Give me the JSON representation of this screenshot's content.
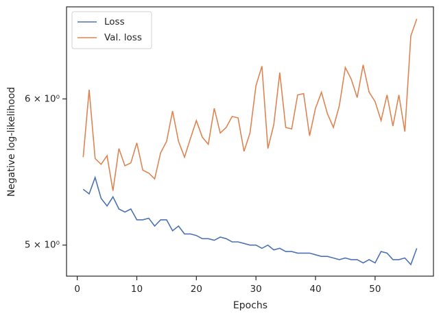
{
  "chart_data": {
    "type": "line",
    "xlabel": "Epochs",
    "ylabel": "Negative log-likelihood",
    "x": [
      1,
      2,
      3,
      4,
      5,
      6,
      7,
      8,
      9,
      10,
      11,
      12,
      13,
      14,
      15,
      16,
      17,
      18,
      19,
      20,
      21,
      22,
      23,
      24,
      25,
      26,
      27,
      28,
      29,
      30,
      31,
      32,
      33,
      34,
      35,
      36,
      37,
      38,
      39,
      40,
      41,
      42,
      43,
      44,
      45,
      46,
      47,
      48,
      49,
      50,
      51,
      52,
      53,
      54,
      55,
      56,
      57
    ],
    "series": [
      {
        "name": "Loss",
        "color": "#4c72b0",
        "values": [
          5.36,
          5.33,
          5.44,
          5.3,
          5.25,
          5.31,
          5.23,
          5.21,
          5.23,
          5.16,
          5.16,
          5.17,
          5.12,
          5.16,
          5.16,
          5.09,
          5.12,
          5.07,
          5.07,
          5.06,
          5.04,
          5.04,
          5.03,
          5.05,
          5.04,
          5.02,
          5.02,
          5.01,
          5.0,
          5.0,
          4.98,
          5.0,
          4.97,
          4.98,
          4.96,
          4.96,
          4.95,
          4.95,
          4.95,
          4.94,
          4.93,
          4.93,
          4.92,
          4.91,
          4.92,
          4.91,
          4.91,
          4.89,
          4.91,
          4.89,
          4.96,
          4.95,
          4.91,
          4.91,
          4.92,
          4.88,
          4.98
        ]
      },
      {
        "name": "Val. loss",
        "color": "#dd8452",
        "values": [
          5.58,
          6.07,
          5.57,
          5.53,
          5.59,
          5.35,
          5.64,
          5.52,
          5.54,
          5.68,
          5.49,
          5.47,
          5.43,
          5.61,
          5.69,
          5.91,
          5.69,
          5.58,
          5.71,
          5.84,
          5.72,
          5.67,
          5.93,
          5.75,
          5.79,
          5.87,
          5.86,
          5.62,
          5.75,
          6.1,
          6.25,
          5.64,
          5.81,
          6.2,
          5.79,
          5.78,
          6.03,
          6.04,
          5.73,
          5.93,
          6.05,
          5.89,
          5.79,
          5.95,
          6.24,
          6.15,
          6.01,
          6.26,
          6.05,
          5.98,
          5.84,
          6.03,
          5.8,
          6.03,
          5.76,
          6.49,
          6.63
        ]
      }
    ],
    "xlim": [
      -1.8,
      59.8
    ],
    "xticks": [
      0,
      10,
      20,
      30,
      40,
      50
    ],
    "ylim": [
      4.81,
      6.73
    ],
    "yscale": "log",
    "yticks": [
      {
        "value": 5,
        "label": "5 × 10⁰"
      },
      {
        "value": 6,
        "label": "6 × 10⁰"
      }
    ],
    "legend": "upper left",
    "grid": false
  }
}
